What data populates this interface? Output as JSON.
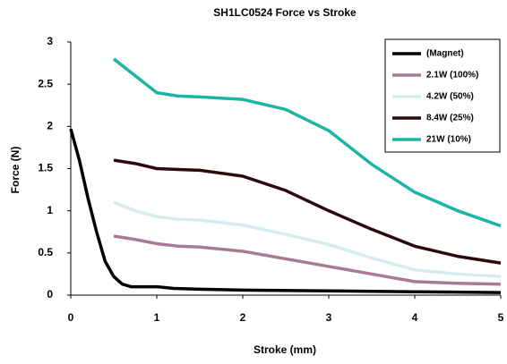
{
  "chart_data": {
    "type": "line",
    "title": "SH1LC0524 Force vs Stroke",
    "xlabel": "Stroke (mm)",
    "ylabel": "Force (N)",
    "xlim": [
      0,
      5
    ],
    "xticks": [
      0,
      1,
      2,
      3,
      4,
      5
    ],
    "ylim": [
      0,
      3
    ],
    "yticks": [
      0,
      0.5,
      1,
      1.5,
      2,
      2.5,
      3
    ],
    "grid": false,
    "legend": "upper right",
    "series": [
      {
        "name": "(Magnet)",
        "color": "#000000",
        "x": [
          0,
          0.1,
          0.2,
          0.3,
          0.4,
          0.5,
          0.6,
          0.7,
          0.8,
          1,
          1.2,
          1.5,
          2,
          3,
          4,
          5
        ],
        "values": [
          1.97,
          1.6,
          1.15,
          0.75,
          0.4,
          0.22,
          0.13,
          0.1,
          0.1,
          0.1,
          0.08,
          0.07,
          0.06,
          0.05,
          0.04,
          0.03
        ]
      },
      {
        "name": "2.1W (100%)",
        "color": "#a67c92",
        "x": [
          0.5,
          0.75,
          1,
          1.25,
          1.5,
          2,
          2.5,
          3,
          3.5,
          4,
          4.5,
          5
        ],
        "values": [
          0.7,
          0.66,
          0.61,
          0.58,
          0.57,
          0.52,
          0.43,
          0.34,
          0.25,
          0.16,
          0.14,
          0.13
        ]
      },
      {
        "name": "4.2W (50%)",
        "color": "#d3ecec",
        "x": [
          0.5,
          0.75,
          1,
          1.25,
          1.5,
          2,
          2.5,
          3,
          3.5,
          4,
          4.5,
          5
        ],
        "values": [
          1.1,
          1.0,
          0.93,
          0.9,
          0.89,
          0.83,
          0.72,
          0.6,
          0.44,
          0.3,
          0.25,
          0.22
        ]
      },
      {
        "name": "8.4W (25%)",
        "color": "#2a0a0a",
        "x": [
          0.5,
          0.75,
          1,
          1.25,
          1.5,
          2,
          2.5,
          3,
          3.5,
          4,
          4.5,
          5
        ],
        "values": [
          1.6,
          1.56,
          1.5,
          1.49,
          1.48,
          1.41,
          1.24,
          1.0,
          0.78,
          0.58,
          0.46,
          0.38
        ]
      },
      {
        "name": "21W (10%)",
        "color": "#1ab5a5",
        "x": [
          0.5,
          0.75,
          1,
          1.25,
          1.5,
          2,
          2.5,
          3,
          3.5,
          4,
          4.5,
          5
        ],
        "values": [
          2.8,
          2.6,
          2.4,
          2.36,
          2.35,
          2.32,
          2.2,
          1.95,
          1.55,
          1.22,
          1.0,
          0.82
        ]
      }
    ]
  }
}
